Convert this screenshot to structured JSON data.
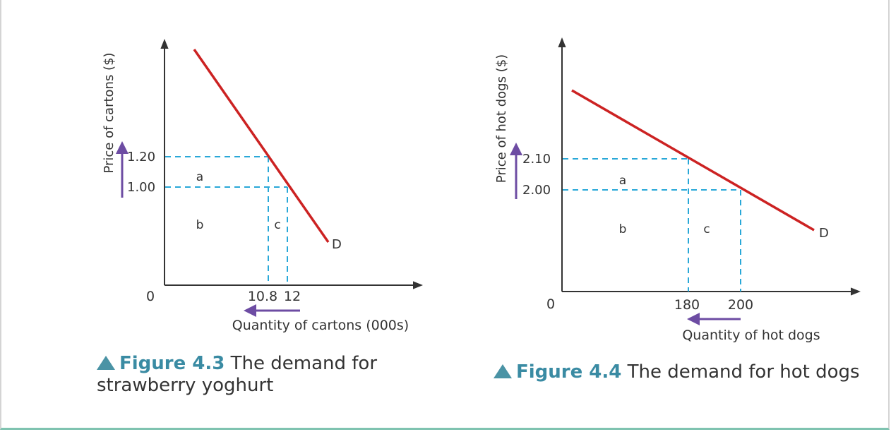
{
  "colors": {
    "demand_line": "#cc2222",
    "dashed_guides": "#29a8d8",
    "change_arrow": "#6d4ca3",
    "axis": "#333333",
    "figure_label": "#3a8ba3",
    "triangle": "#4a93a5"
  },
  "chart_data": [
    {
      "type": "line",
      "ylabel": "Price of cartons ($)",
      "xlabel": "Quantity of cartons (000s)",
      "origin_label": "0",
      "series": [
        {
          "name": "D",
          "points": [
            [
              10.8,
              1.2
            ],
            [
              12,
              1.0
            ]
          ]
        }
      ],
      "y_ticks": [
        {
          "value": 1.2,
          "label": "1.20"
        },
        {
          "value": 1.0,
          "label": "1.00"
        }
      ],
      "x_ticks": [
        {
          "value": 10.8,
          "label": "10.8"
        },
        {
          "value": 12,
          "label": "12"
        }
      ],
      "areas": [
        "a",
        "b",
        "c"
      ],
      "price_change": {
        "from": 1.0,
        "to": 1.2,
        "direction": "up"
      },
      "quantity_change": {
        "from": 12,
        "to": 10.8,
        "direction": "left"
      },
      "caption": {
        "figure": "Figure 4.3",
        "text": "The demand for strawberry yoghurt"
      }
    },
    {
      "type": "line",
      "ylabel": "Price of hot dogs ($)",
      "xlabel": "Quantity of hot dogs",
      "origin_label": "0",
      "series": [
        {
          "name": "D",
          "points": [
            [
              180,
              2.1
            ],
            [
              200,
              2.0
            ]
          ]
        }
      ],
      "y_ticks": [
        {
          "value": 2.1,
          "label": "2.10"
        },
        {
          "value": 2.0,
          "label": "2.00"
        }
      ],
      "x_ticks": [
        {
          "value": 180,
          "label": "180"
        },
        {
          "value": 200,
          "label": "200"
        }
      ],
      "areas": [
        "a",
        "b",
        "c"
      ],
      "price_change": {
        "from": 2.0,
        "to": 2.1,
        "direction": "up"
      },
      "quantity_change": {
        "from": 200,
        "to": 180,
        "direction": "left"
      },
      "caption": {
        "figure": "Figure 4.4",
        "text": "The demand for hot dogs"
      }
    }
  ]
}
